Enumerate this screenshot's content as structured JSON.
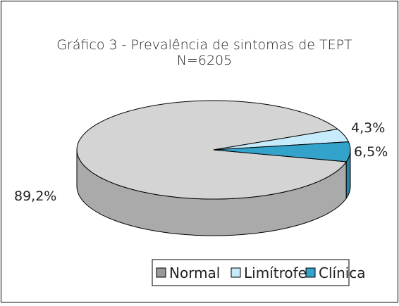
{
  "chart_data": {
    "type": "pie",
    "title": "Gráfico 3 - Prevalência de sintomas de TEPT",
    "subtitle": "N=6205",
    "categories": [
      "Normal",
      "Limítrofe",
      "Clínica"
    ],
    "values": [
      89.2,
      4.3,
      6.5
    ],
    "value_labels": [
      "89,2%",
      "4,3%",
      "6,5%"
    ],
    "colors": [
      "#d4d4d4",
      "#c6ecfb",
      "#33a3cc"
    ],
    "legend": "bottom"
  }
}
